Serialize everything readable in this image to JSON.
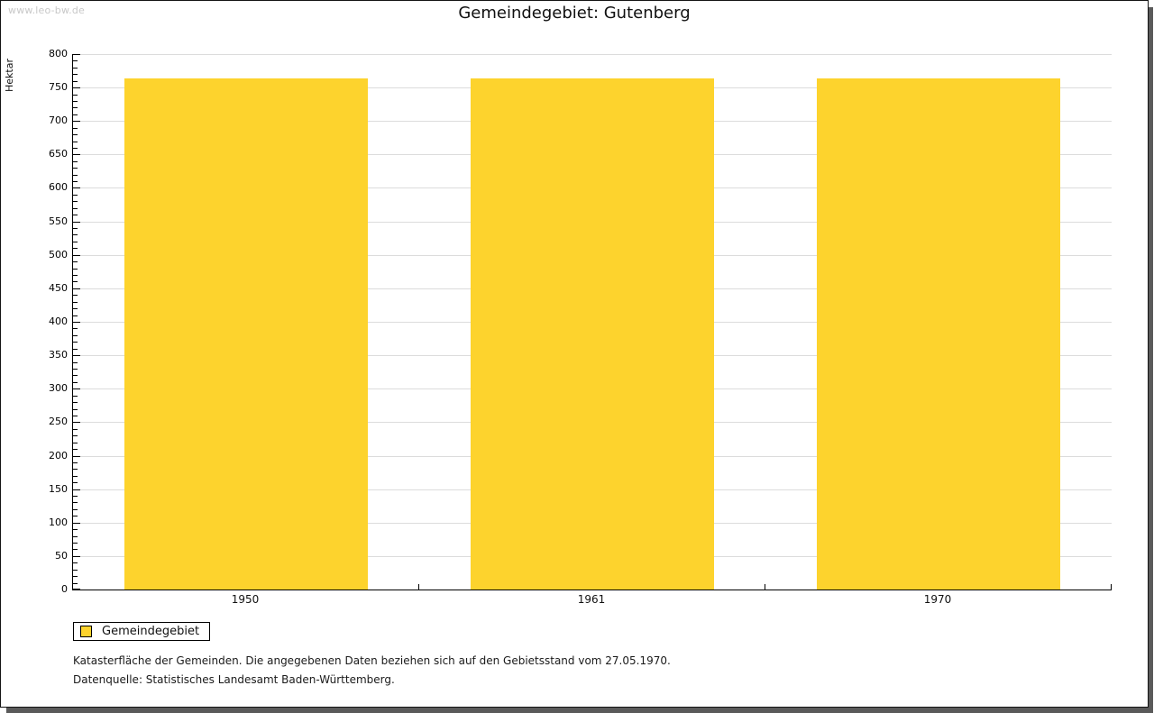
{
  "page": {
    "watermark": "www.leo-bw.de",
    "title": "Gemeindegebiet: Gutenberg"
  },
  "chart_data": {
    "type": "bar",
    "title": "Gemeindegebiet: Gutenberg",
    "categories": [
      "1950",
      "1961",
      "1970"
    ],
    "series": [
      {
        "name": "Gemeindegebiet",
        "values": [
          764,
          764,
          764
        ]
      }
    ],
    "xlabel": "",
    "ylabel": "Hektar",
    "ylim": [
      0,
      800
    ],
    "ytick_major": 50,
    "ytick_minor": 10,
    "grid": "horizontal-major",
    "legend_position": "bottom-left",
    "bar_color": "#FDD32D"
  },
  "legend": {
    "items": [
      {
        "label": "Gemeindegebiet",
        "swatch_color": "#FDD32D"
      }
    ]
  },
  "footer": {
    "line1": "Katasterfläche der Gemeinden. Die angegebenen Daten beziehen sich auf den Gebietsstand vom 27.05.1970.",
    "line2": "Datenquelle: Statistisches Landesamt Baden-Württemberg."
  },
  "colors": {
    "bar": "#FDD32D",
    "grid": "#DCDCDC",
    "axis": "#000000",
    "watermark": "#C8C8C8",
    "shadow": "#5A5A5A"
  }
}
